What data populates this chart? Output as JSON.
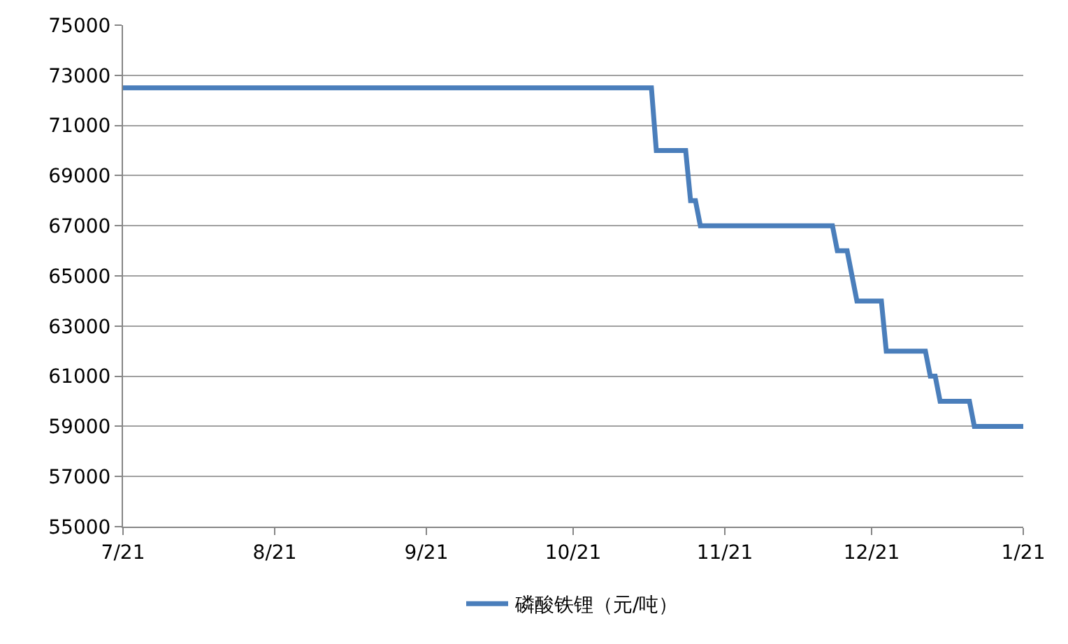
{
  "chart_data": {
    "type": "line",
    "categories": [
      "7/21",
      null,
      null,
      null,
      null,
      null,
      null,
      null,
      null,
      null,
      null,
      null,
      null,
      null,
      null,
      null,
      null,
      null,
      null,
      null,
      null,
      null,
      null,
      null,
      null,
      null,
      null,
      null,
      null,
      null,
      null,
      "8/21",
      null,
      null,
      null,
      null,
      null,
      null,
      null,
      null,
      null,
      null,
      null,
      null,
      null,
      null,
      null,
      null,
      null,
      null,
      null,
      null,
      null,
      null,
      null,
      null,
      null,
      null,
      null,
      null,
      null,
      null,
      "9/21",
      null,
      null,
      null,
      null,
      null,
      null,
      null,
      null,
      null,
      null,
      null,
      null,
      null,
      null,
      null,
      null,
      null,
      null,
      null,
      null,
      null,
      null,
      null,
      null,
      null,
      null,
      null,
      null,
      null,
      "10/21",
      null,
      null,
      null,
      null,
      null,
      null,
      null,
      null,
      null,
      null,
      null,
      null,
      null,
      null,
      null,
      null,
      null,
      null,
      null,
      null,
      null,
      null,
      null,
      null,
      null,
      null,
      null,
      null,
      null,
      null,
      "11/21",
      null,
      null,
      null,
      null,
      null,
      null,
      null,
      null,
      null,
      null,
      null,
      null,
      null,
      null,
      null,
      null,
      null,
      null,
      null,
      null,
      null,
      null,
      null,
      null,
      null,
      null,
      null,
      null,
      null,
      "12/21",
      null,
      null,
      null,
      null,
      null,
      null,
      null,
      null,
      null,
      null,
      null,
      null,
      null,
      null,
      null,
      null,
      null,
      null,
      null,
      null,
      null,
      null,
      null,
      null,
      null,
      null,
      null,
      null,
      null,
      null,
      "1/21"
    ],
    "series": [
      {
        "name": "磷酸铁锂（元/吨）",
        "color": "#4a7ebb",
        "values": [
          72500,
          72500,
          72500,
          72500,
          72500,
          72500,
          72500,
          72500,
          72500,
          72500,
          72500,
          72500,
          72500,
          72500,
          72500,
          72500,
          72500,
          72500,
          72500,
          72500,
          72500,
          72500,
          72500,
          72500,
          72500,
          72500,
          72500,
          72500,
          72500,
          72500,
          72500,
          72500,
          72500,
          72500,
          72500,
          72500,
          72500,
          72500,
          72500,
          72500,
          72500,
          72500,
          72500,
          72500,
          72500,
          72500,
          72500,
          72500,
          72500,
          72500,
          72500,
          72500,
          72500,
          72500,
          72500,
          72500,
          72500,
          72500,
          72500,
          72500,
          72500,
          72500,
          72500,
          72500,
          72500,
          72500,
          72500,
          72500,
          72500,
          72500,
          72500,
          72500,
          72500,
          72500,
          72500,
          72500,
          72500,
          72500,
          72500,
          72500,
          72500,
          72500,
          72500,
          72500,
          72500,
          72500,
          72500,
          72500,
          72500,
          72500,
          72500,
          72500,
          72500,
          72500,
          72500,
          72500,
          72500,
          72500,
          72500,
          72500,
          72500,
          72500,
          72500,
          72500,
          72500,
          72500,
          72500,
          72500,
          72500,
          70000,
          70000,
          70000,
          70000,
          70000,
          70000,
          70000,
          68000,
          68000,
          67000,
          67000,
          67000,
          67000,
          67000,
          67000,
          67000,
          67000,
          67000,
          67000,
          67000,
          67000,
          67000,
          67000,
          67000,
          67000,
          67000,
          67000,
          67000,
          67000,
          67000,
          67000,
          67000,
          67000,
          67000,
          67000,
          67000,
          67000,
          66000,
          66000,
          66000,
          65000,
          64000,
          64000,
          64000,
          64000,
          64000,
          64000,
          62000,
          62000,
          62000,
          62000,
          62000,
          62000,
          62000,
          62000,
          62000,
          61000,
          61000,
          60000,
          60000,
          60000,
          60000,
          60000,
          60000,
          60000,
          59000,
          59000,
          59000,
          59000,
          59000,
          59000,
          59000,
          59000,
          59000,
          59000,
          59000
        ]
      }
    ],
    "ylim": [
      55000,
      75000
    ],
    "yticks": [
      55000,
      57000,
      59000,
      61000,
      63000,
      65000,
      67000,
      69000,
      71000,
      73000,
      75000
    ],
    "grid": "y",
    "legend": "bottom",
    "marker": "none",
    "line_style": "solid"
  }
}
